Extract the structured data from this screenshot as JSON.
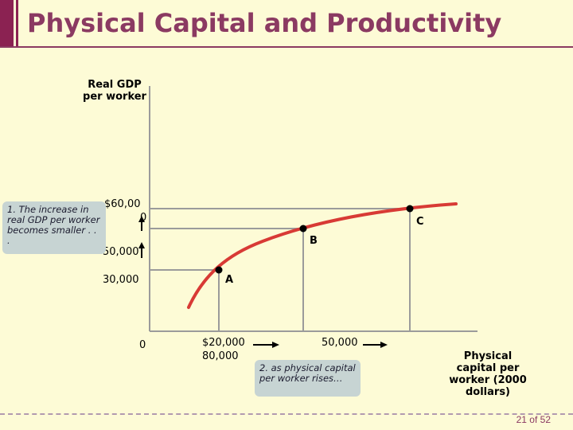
{
  "header": {
    "title": "Physical Capital and Productivity"
  },
  "footer": {
    "page": "21 of 52"
  },
  "axes": {
    "y_label": "Real GDP per worker",
    "x_label": "Physical capital per worker (2000 dollars)"
  },
  "ticks": {
    "y_60000": "$60,00",
    "y_60000_cont": "0",
    "y_50000": "50,000",
    "y_30000": "30,000",
    "origin": "0",
    "x_20000": "$20,000",
    "x_80000": "80,000",
    "x_50000": "50,000"
  },
  "points": {
    "a": "A",
    "b": "B",
    "c": "C"
  },
  "notes": {
    "note1": "1.  The increase in real GDP per worker becomes smaller . . .",
    "note2": "2. as physical capital per worker rises…"
  },
  "colors": {
    "title": "#8b3a62",
    "curve": "#d83a35",
    "guides": "#9b9b9b",
    "note_bg": "#c7d4d3"
  }
}
